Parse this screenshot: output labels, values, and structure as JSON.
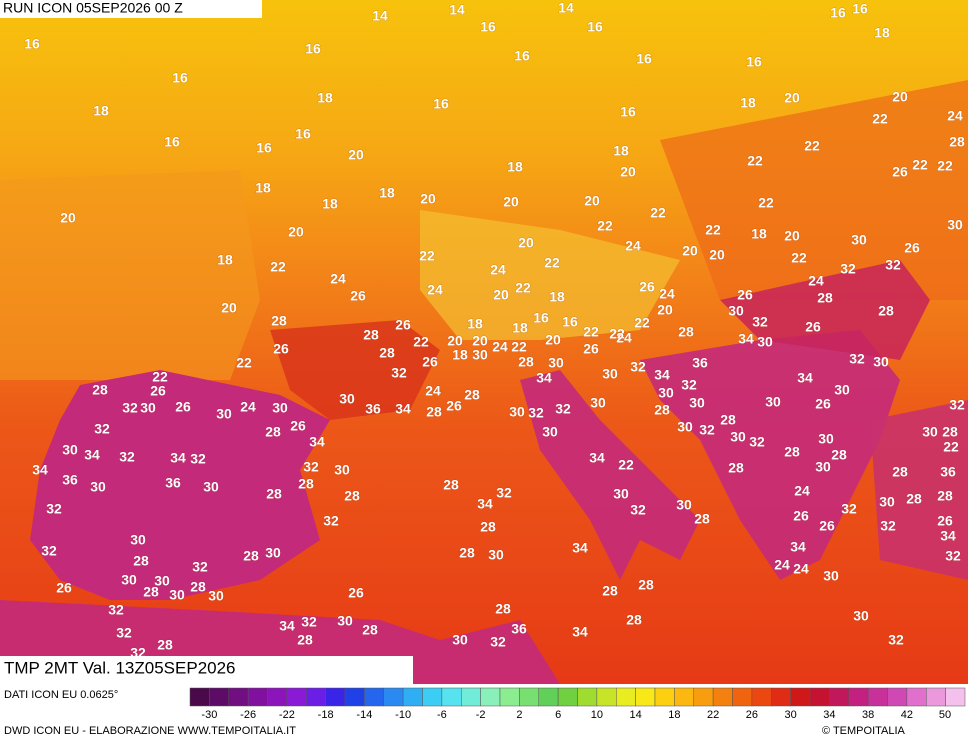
{
  "header": {
    "run": "RUN ICON 05SEP2026 00 Z",
    "field": "TMP 2MT Val. 13Z05SEP2026"
  },
  "footer": {
    "source": "DATI ICON EU 0.0625°",
    "credit": "DWD ICON EU - ELABORAZIONE WWW.TEMPOITALIA.IT",
    "copyright": "© TEMPOITALIA"
  },
  "colorbar": {
    "colors": [
      "#4a0a4a",
      "#5c0c66",
      "#700e82",
      "#82109e",
      "#8c14bb",
      "#8a1ad6",
      "#6a1ee6",
      "#3a24e8",
      "#2040e8",
      "#2466ee",
      "#2a8af2",
      "#30aef4",
      "#3ccdf4",
      "#56e2ee",
      "#70ecd8",
      "#88f0b8",
      "#8cec90",
      "#78e070",
      "#60d058",
      "#70d040",
      "#a0dc30",
      "#c8e428",
      "#e8ec20",
      "#f8e818",
      "#fcd010",
      "#fcb810",
      "#f89c10",
      "#f48010",
      "#f06410",
      "#ea4810",
      "#e02c14",
      "#d01818",
      "#c41230",
      "#c0185a",
      "#c42080",
      "#c8309a",
      "#d048b4",
      "#e070cc",
      "#ec98dc",
      "#f4c0ec"
    ],
    "ticks": [
      -30,
      -26,
      -22,
      -18,
      -14,
      -10,
      -6,
      -2,
      2,
      6,
      10,
      14,
      18,
      22,
      26,
      30,
      34,
      38,
      42,
      50
    ]
  },
  "map": {
    "labels": [
      14,
      14,
      14,
      16,
      16,
      16,
      16,
      16,
      16,
      16,
      16,
      16,
      18,
      16,
      18,
      18,
      16,
      16,
      18,
      20,
      20,
      22,
      24,
      16,
      16,
      16,
      20,
      18,
      22,
      22,
      20,
      18,
      28,
      22,
      26,
      22,
      18,
      18,
      18,
      20,
      20,
      20,
      22,
      22,
      20,
      20,
      22,
      22,
      18,
      20,
      30,
      30,
      18,
      22,
      22,
      20,
      24,
      20,
      20,
      22,
      26,
      24,
      24,
      22,
      32,
      32,
      26,
      24,
      20,
      22,
      18,
      26,
      24,
      24,
      28,
      20,
      28,
      26,
      28,
      18,
      18,
      16,
      16,
      22,
      22,
      22,
      20,
      28,
      26,
      30,
      32,
      26,
      28,
      26,
      28,
      22,
      20,
      20,
      24,
      22,
      20,
      26,
      24,
      34,
      30,
      32,
      30,
      22,
      32,
      26,
      18,
      30,
      28,
      30,
      30,
      32,
      36,
      34,
      32,
      22,
      26,
      28,
      32,
      30,
      26,
      30,
      24,
      30,
      30,
      36,
      34,
      24,
      28,
      26,
      28,
      34,
      30,
      32,
      32,
      30,
      30,
      28,
      30,
      28,
      30,
      34,
      30,
      26,
      32,
      32,
      28,
      26,
      34,
      30,
      30,
      32,
      30,
      32,
      28,
      30,
      28,
      30,
      28,
      22,
      30,
      34,
      32,
      34,
      32,
      34,
      22,
      34,
      36,
      32,
      30,
      28,
      30,
      28,
      36,
      30,
      36,
      30,
      28,
      28,
      32,
      34,
      28,
      28,
      24,
      32,
      30,
      32,
      30,
      28,
      30,
      28,
      28,
      32,
      28,
      26,
      26,
      32,
      32,
      26,
      30,
      32,
      34,
      34,
      28,
      28,
      30,
      28,
      30,
      34,
      32,
      32,
      30,
      30,
      28,
      24,
      24,
      30,
      26,
      28,
      30,
      30,
      26,
      28,
      28,
      32,
      28,
      30,
      34,
      32,
      30,
      28,
      28,
      36,
      34,
      32,
      28,
      32,
      30,
      32,
      32,
      28
    ]
  }
}
